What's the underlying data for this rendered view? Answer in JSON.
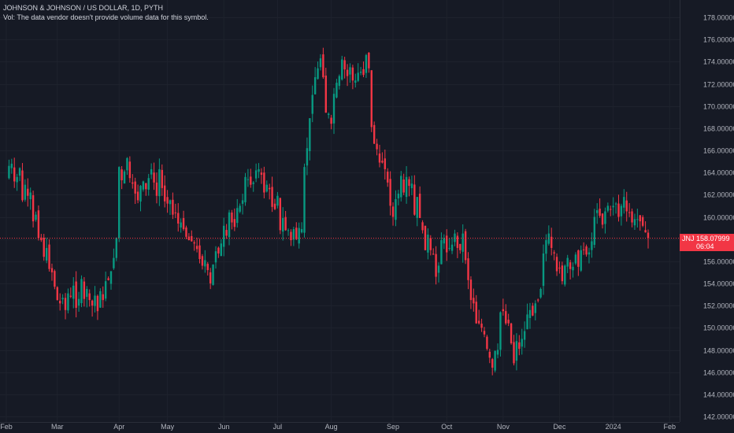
{
  "header": {
    "title": "JOHNSON & JOHNSON / US DOLLAR, 1D, PYTH",
    "volume_note": "Vol: The data vendor doesn't provide volume data for this symbol."
  },
  "price_tag": {
    "symbol": "JNJ",
    "price": "158.07999",
    "countdown": "06:04"
  },
  "colors": {
    "background": "#161a25",
    "up": "#089981",
    "down": "#f23645",
    "grid": "#1e222d",
    "axis_text": "#b2b5be"
  },
  "chart_data": {
    "type": "candlestick",
    "ylim": [
      142,
      178
    ],
    "y_ticks": [
      142,
      144,
      146,
      148,
      150,
      152,
      154,
      156,
      158,
      160,
      162,
      164,
      166,
      168,
      170,
      172,
      174,
      176,
      178
    ],
    "y_tick_labels": [
      "142.00000",
      "144.00000",
      "146.00000",
      "148.00000",
      "150.00000",
      "152.00000",
      "154.00000",
      "156.00000",
      "158.00000",
      "160.00000",
      "162.00000",
      "164.00000",
      "166.00000",
      "168.00000",
      "170.00000",
      "172.00000",
      "174.00000",
      "176.00000",
      "178.00000"
    ],
    "x_labels": [
      {
        "label": "Feb",
        "index": 0
      },
      {
        "label": "Mar",
        "index": 19
      },
      {
        "label": "Apr",
        "index": 42
      },
      {
        "label": "May",
        "index": 60
      },
      {
        "label": "Jun",
        "index": 81
      },
      {
        "label": "Jul",
        "index": 101
      },
      {
        "label": "Aug",
        "index": 121
      },
      {
        "label": "Sep",
        "index": 144
      },
      {
        "label": "Oct",
        "index": 164
      },
      {
        "label": "Nov",
        "index": 185
      },
      {
        "label": "Dec",
        "index": 206
      },
      {
        "label": "2024",
        "index": 226
      },
      {
        "label": "Feb",
        "index": 247
      }
    ],
    "last_price": 158.07999,
    "closes": [
      163.5,
      164.6,
      164.8,
      163.2,
      163.6,
      164.4,
      161.5,
      162.9,
      161.9,
      162.2,
      159.6,
      160.2,
      158.1,
      157.9,
      156.4,
      157.2,
      155.3,
      155.0,
      153.7,
      152.5,
      152.2,
      152.7,
      151.6,
      153.1,
      152.8,
      153.8,
      151.8,
      152.6,
      154.4,
      152.6,
      153.5,
      152.5,
      152.0,
      152.9,
      151.5,
      153.3,
      152.5,
      154.2,
      154.3,
      155.1,
      156.3,
      158.1,
      164.5,
      163.3,
      164.1,
      165.3,
      163.5,
      163.0,
      162.1,
      161.5,
      162.8,
      163.2,
      162.5,
      163.5,
      164.3,
      163.1,
      161.9,
      164.3,
      162.6,
      161.4,
      161.2,
      161.5,
      160.2,
      160.4,
      159.4,
      159.5,
      158.9,
      158.2,
      157.9,
      157.8,
      157.6,
      157.1,
      156.2,
      155.6,
      156.1,
      155.2,
      154.0,
      155.7,
      156.9,
      156.7,
      157.6,
      159.2,
      158.3,
      160.4,
      159.5,
      159.1,
      160.8,
      161.0,
      161.5,
      163.6,
      163.4,
      162.9,
      163.1,
      164.2,
      164.3,
      163.8,
      162.2,
      162.9,
      162.5,
      160.9,
      160.7,
      161.9,
      158.8,
      159.9,
      158.8,
      158.8,
      157.9,
      158.9,
      158.0,
      159.0,
      158.9,
      164.5,
      166.2,
      168.9,
      171.0,
      172.6,
      173.4,
      174.3,
      172.6,
      169.4,
      169.3,
      168.4,
      171.1,
      172.1,
      172.7,
      174.2,
      173.3,
      172.7,
      173.5,
      172.3,
      172.3,
      173.0,
      173.1,
      172.8,
      174.6,
      173.4,
      168.1,
      166.6,
      166.1,
      164.9,
      164.9,
      164.3,
      163.1,
      161.0,
      160.0,
      161.6,
      162.1,
      163.7,
      162.2,
      163.6,
      162.8,
      163.0,
      160.2,
      161.8,
      159.9,
      158.8,
      157.0,
      158.4,
      157.0,
      156.6,
      154.6,
      155.6,
      157.9,
      158.1,
      156.8,
      157.2,
      157.5,
      158.5,
      157.2,
      157.0,
      158.5,
      156.1,
      154.3,
      152.5,
      152.2,
      150.4,
      150.4,
      150.0,
      149.4,
      148.1,
      147.3,
      146.4,
      147.9,
      148.0,
      151.4,
      151.5,
      150.4,
      150.4,
      148.6,
      146.8,
      148.8,
      148.1,
      149.0,
      149.7,
      151.2,
      151.6,
      151.1,
      152.2,
      152.5,
      153.5,
      156.7,
      157.9,
      158.5,
      157.2,
      156.7,
      155.1,
      155.4,
      154.2,
      155.6,
      156.3,
      155.3,
      155.5,
      156.6,
      155.5,
      157.0,
      157.0,
      156.6,
      156.8,
      157.8,
      160.0,
      160.6,
      160.1,
      159.3,
      160.5,
      161.0,
      160.7,
      161.0,
      161.2,
      160.0,
      161.0,
      161.8,
      160.5,
      160.4,
      159.5,
      159.8,
      159.8,
      159.6,
      159.2,
      158.6,
      158.1
    ]
  }
}
